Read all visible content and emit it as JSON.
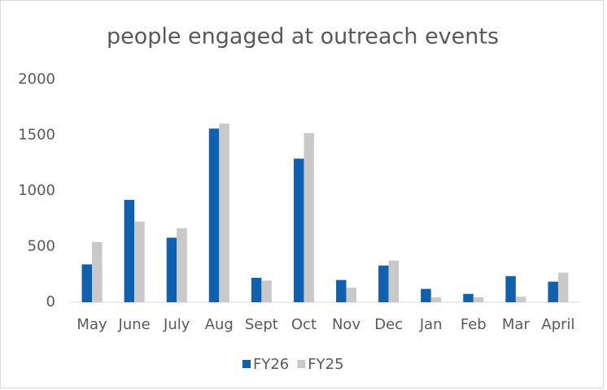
{
  "chart_data": {
    "type": "bar",
    "title": "people engaged at outreach events",
    "categories": [
      "May",
      "June",
      "July",
      "Aug",
      "Sept",
      "Oct",
      "Nov",
      "Dec",
      "Jan",
      "Feb",
      "Mar",
      "April"
    ],
    "series": [
      {
        "name": "FY26",
        "color": "#1060b0",
        "values": [
          340,
          920,
          580,
          1560,
          220,
          1290,
          200,
          330,
          120,
          75,
          235,
          185
        ]
      },
      {
        "name": "FY25",
        "color": "#c9c9c9",
        "values": [
          540,
          725,
          665,
          1605,
          195,
          1520,
          130,
          375,
          45,
          45,
          50,
          265
        ]
      }
    ],
    "ylim": [
      0,
      2000
    ],
    "yticks": [
      0,
      500,
      1000,
      1500,
      2000
    ],
    "grid": false,
    "legend": "bottom"
  }
}
